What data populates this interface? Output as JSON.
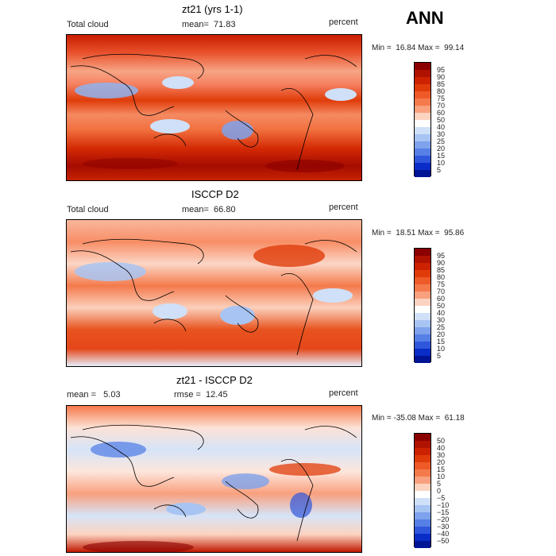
{
  "season": "ANN",
  "panels": [
    {
      "title": "zt21 (yrs 1-1)",
      "left_label": "Total cloud",
      "mid_label": "mean=  71.83",
      "units": "percent",
      "minmax": "Min =  16.84 Max =  99.14",
      "colorbar": {
        "labels": [
          "95",
          "90",
          "85",
          "80",
          "75",
          "70",
          "60",
          "50",
          "40",
          "30",
          "25",
          "20",
          "15",
          "10",
          "5"
        ],
        "colors": [
          "#8b0000",
          "#b01200",
          "#cc2200",
          "#e03c0a",
          "#ee5a28",
          "#f47a4c",
          "#f9a07e",
          "#fcd3c0",
          "#ffffff",
          "#cfe0f8",
          "#a8c4f2",
          "#7ea2ec",
          "#5680e6",
          "#2f57dc",
          "#0a2dc8",
          "#001496"
        ]
      }
    },
    {
      "title": "ISCCP D2",
      "left_label": "Total cloud",
      "mid_label": "mean=  66.80",
      "units": "percent",
      "minmax": "Min =  18.51 Max =  95.86",
      "colorbar": {
        "labels": [
          "95",
          "90",
          "85",
          "80",
          "75",
          "70",
          "60",
          "50",
          "40",
          "30",
          "25",
          "20",
          "15",
          "10",
          "5"
        ],
        "colors": [
          "#8b0000",
          "#b01200",
          "#cc2200",
          "#e03c0a",
          "#ee5a28",
          "#f47a4c",
          "#f9a07e",
          "#fcd3c0",
          "#ffffff",
          "#cfe0f8",
          "#a8c4f2",
          "#7ea2ec",
          "#5680e6",
          "#2f57dc",
          "#0a2dc8",
          "#001496"
        ]
      }
    },
    {
      "title": "zt21 - ISCCP D2",
      "left_label": "mean =   5.03",
      "mid_label": "rmse =  12.45",
      "units": "percent",
      "minmax": "Min = -35.08 Max =  61.18",
      "colorbar": {
        "labels": [
          "50",
          "40",
          "30",
          "20",
          "15",
          "10",
          "5",
          "0",
          "−5",
          "−10",
          "−15",
          "−20",
          "−30",
          "−40",
          "−50"
        ],
        "colors": [
          "#8b0000",
          "#b01200",
          "#cc2200",
          "#e03c0a",
          "#ee5a28",
          "#f47a4c",
          "#f9a07e",
          "#fcd3c0",
          "#ffffff",
          "#cfe0f8",
          "#a8c4f2",
          "#7ea2ec",
          "#5680e6",
          "#2f57dc",
          "#0a2dc8",
          "#001496"
        ]
      }
    }
  ],
  "chart_data": [
    {
      "type": "heatmap",
      "title": "zt21 (yrs 1-1)",
      "variable": "Total cloud",
      "units": "percent",
      "mean": 71.83,
      "min": 16.84,
      "max": 99.14,
      "contour_levels": [
        5,
        10,
        15,
        20,
        25,
        30,
        40,
        50,
        60,
        70,
        75,
        80,
        85,
        90,
        95
      ]
    },
    {
      "type": "heatmap",
      "title": "ISCCP D2",
      "variable": "Total cloud",
      "units": "percent",
      "mean": 66.8,
      "min": 18.51,
      "max": 95.86,
      "contour_levels": [
        5,
        10,
        15,
        20,
        25,
        30,
        40,
        50,
        60,
        70,
        75,
        80,
        85,
        90,
        95
      ]
    },
    {
      "type": "heatmap",
      "title": "zt21 - ISCCP D2",
      "units": "percent",
      "mean": 5.03,
      "rmse": 12.45,
      "min": -35.08,
      "max": 61.18,
      "contour_levels": [
        -50,
        -40,
        -30,
        -20,
        -15,
        -10,
        -5,
        0,
        5,
        10,
        15,
        20,
        30,
        40,
        50
      ]
    }
  ]
}
